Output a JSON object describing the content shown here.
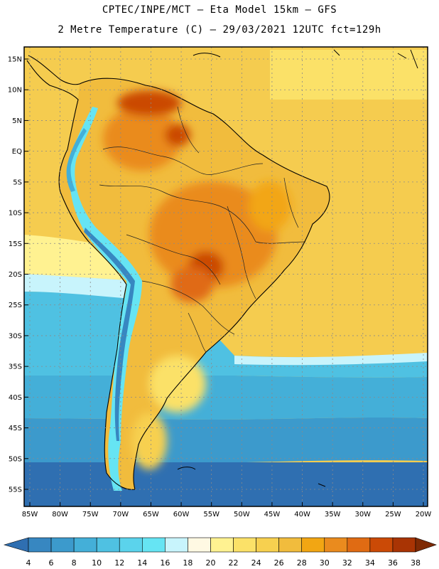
{
  "title": {
    "line1": "CPTEC/INPE/MCT –  Eta Model 15km – GFS",
    "line2": "2 Metre Temperature (C) – 29/03/2021 12UTC fct=129h"
  },
  "axes": {
    "lat_labels": [
      "15N",
      "10N",
      "5N",
      "EQ",
      "5S",
      "10S",
      "15S",
      "20S",
      "25S",
      "30S",
      "35S",
      "40S",
      "45S",
      "50S",
      "55S"
    ],
    "lon_labels": [
      "85W",
      "80W",
      "75W",
      "70W",
      "65W",
      "60W",
      "55W",
      "50W",
      "45W",
      "40W",
      "35W",
      "30W",
      "25W",
      "20W"
    ]
  },
  "colorbar": {
    "ticks": [
      "4",
      "6",
      "8",
      "10",
      "12",
      "14",
      "16",
      "18",
      "20",
      "22",
      "24",
      "26",
      "28",
      "30",
      "32",
      "34",
      "36",
      "38"
    ],
    "colors": [
      "#2f6fb1",
      "#3787c1",
      "#3c9acc",
      "#44afd8",
      "#4fc1e2",
      "#5bd3ec",
      "#66e4f3",
      "#c8f4fc",
      "#fff9e3",
      "#fff291",
      "#fbe168",
      "#f7d04f",
      "#f1bc3d",
      "#f2a613",
      "#ea8b1e",
      "#e06b13",
      "#cb4a06",
      "#a93404",
      "#7f2a04"
    ]
  },
  "colors": {
    "ocean_warm": "#f5cc4f",
    "land_hot": "#c9521c",
    "coast": "#000000"
  }
}
